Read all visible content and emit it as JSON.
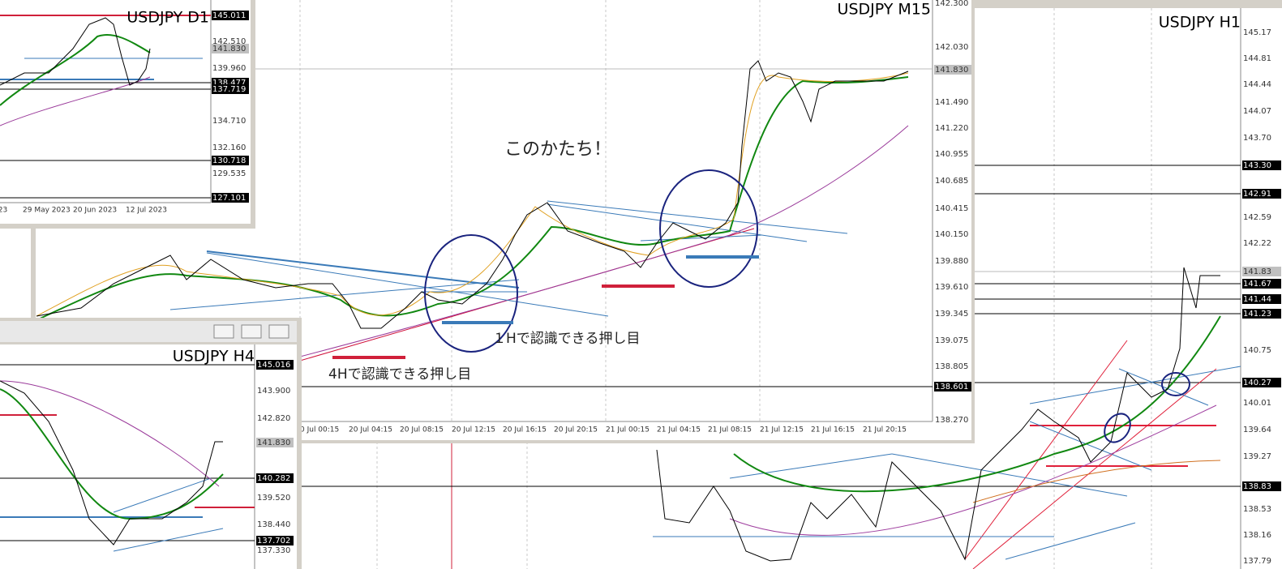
{
  "windows": [
    {
      "title": "USDJPY H1",
      "price_labels": [
        {
          "text": "145.17",
          "style": "plain"
        },
        {
          "text": "144.81",
          "style": "plain"
        },
        {
          "text": "144.44",
          "style": "plain"
        },
        {
          "text": "144.07",
          "style": "plain"
        },
        {
          "text": "143.70",
          "style": "plain"
        },
        {
          "text": "143.30",
          "style": "black"
        },
        {
          "text": "142.91",
          "style": "black"
        },
        {
          "text": "142.59",
          "style": "plain"
        },
        {
          "text": "142.22",
          "style": "plain"
        },
        {
          "text": "141.83",
          "style": "grey"
        },
        {
          "text": "141.67",
          "style": "black"
        },
        {
          "text": "141.44",
          "style": "black"
        },
        {
          "text": "141.23",
          "style": "black"
        },
        {
          "text": "140.75",
          "style": "plain"
        },
        {
          "text": "140.27",
          "style": "black"
        },
        {
          "text": "140.01",
          "style": "plain"
        },
        {
          "text": "139.64",
          "style": "plain"
        },
        {
          "text": "139.27",
          "style": "plain"
        },
        {
          "text": "138.83",
          "style": "black"
        },
        {
          "text": "138.53",
          "style": "plain"
        },
        {
          "text": "138.16",
          "style": "plain"
        },
        {
          "text": "137.79",
          "style": "plain"
        }
      ]
    },
    {
      "title": "USDJPY M15",
      "price_labels": [
        {
          "text": "142.300",
          "style": "plain"
        },
        {
          "text": "142.030",
          "style": "plain"
        },
        {
          "text": "141.830",
          "style": "grey"
        },
        {
          "text": "141.490",
          "style": "plain"
        },
        {
          "text": "141.220",
          "style": "plain"
        },
        {
          "text": "140.955",
          "style": "plain"
        },
        {
          "text": "140.685",
          "style": "plain"
        },
        {
          "text": "140.415",
          "style": "plain"
        },
        {
          "text": "140.150",
          "style": "plain"
        },
        {
          "text": "139.880",
          "style": "plain"
        },
        {
          "text": "139.610",
          "style": "plain"
        },
        {
          "text": "139.345",
          "style": "plain"
        },
        {
          "text": "139.075",
          "style": "plain"
        },
        {
          "text": "138.805",
          "style": "plain"
        },
        {
          "text": "138.601",
          "style": "black"
        },
        {
          "text": "138.270",
          "style": "plain"
        }
      ],
      "time_labels": [
        "0 Jul 00:15",
        "20 Jul 04:15",
        "20 Jul 08:15",
        "20 Jul 12:15",
        "20 Jul 16:15",
        "20 Jul 20:15",
        "21 Jul 00:15",
        "21 Jul 04:15",
        "21 Jul 08:15",
        "21 Jul 12:15",
        "21 Jul 16:15",
        "21 Jul 20:15"
      ],
      "annotations": [
        "このかたち！",
        "１Hで認識できる押し目",
        "4Hで認識できる押し目"
      ]
    },
    {
      "title": "USDJPY D1",
      "price_labels": [
        {
          "text": "145.011",
          "style": "black"
        },
        {
          "text": "142.510",
          "style": "plain"
        },
        {
          "text": "141.830",
          "style": "grey"
        },
        {
          "text": "139.960",
          "style": "plain"
        },
        {
          "text": "138.477",
          "style": "black"
        },
        {
          "text": "137.719",
          "style": "black"
        },
        {
          "text": "134.710",
          "style": "plain"
        },
        {
          "text": "132.160",
          "style": "plain"
        },
        {
          "text": "130.718",
          "style": "black"
        },
        {
          "text": "129.535",
          "style": "plain"
        },
        {
          "text": "127.101",
          "style": "black"
        }
      ],
      "time_labels": [
        "023",
        "29 May 2023",
        "20 Jun 2023",
        "12 Jul 2023"
      ]
    },
    {
      "title": "USDJPY H4",
      "price_labels": [
        {
          "text": "145.016",
          "style": "black"
        },
        {
          "text": "143.900",
          "style": "plain"
        },
        {
          "text": "142.820",
          "style": "plain"
        },
        {
          "text": "141.830",
          "style": "grey"
        },
        {
          "text": "140.282",
          "style": "black"
        },
        {
          "text": "139.520",
          "style": "plain"
        },
        {
          "text": "138.440",
          "style": "plain"
        },
        {
          "text": "137.702",
          "style": "black"
        },
        {
          "text": "137.330",
          "style": "plain"
        }
      ]
    }
  ]
}
